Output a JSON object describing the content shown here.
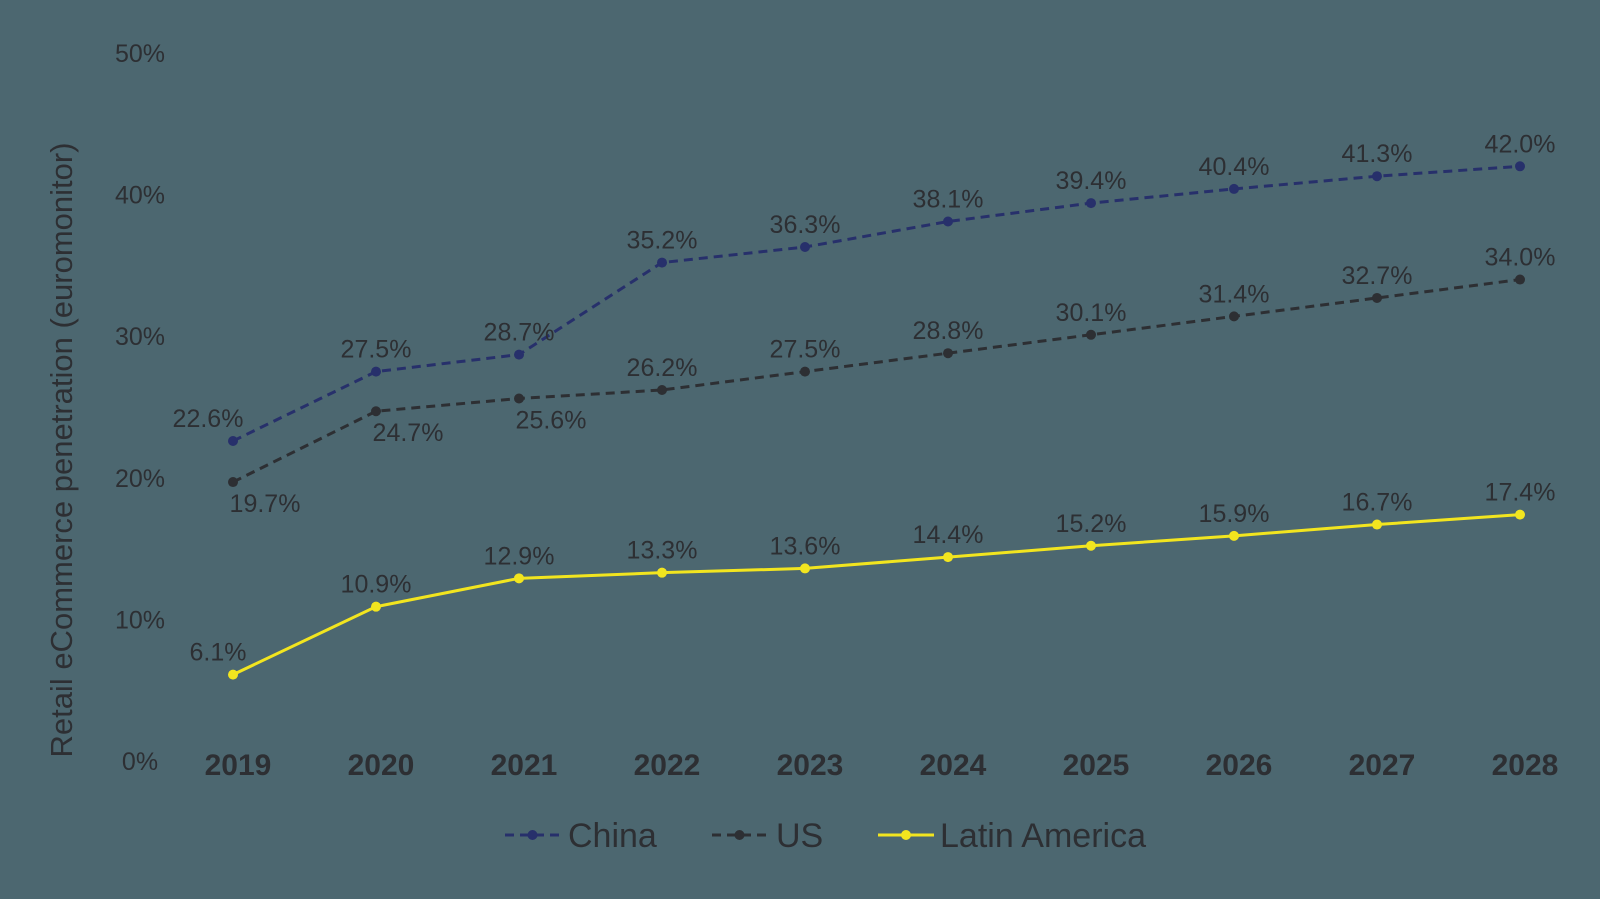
{
  "chart_data": {
    "type": "line",
    "ylabel": "Retail eCommerce penetration (euromonitor)",
    "xlabel": "",
    "ylim": [
      0,
      50
    ],
    "y_ticks": [
      "0%",
      "10%",
      "20%",
      "30%",
      "40%",
      "50%"
    ],
    "y_tick_values": [
      0,
      10,
      20,
      30,
      40,
      50
    ],
    "categories": [
      "2019",
      "2020",
      "2021",
      "2022",
      "2023",
      "2024",
      "2025",
      "2026",
      "2027",
      "2028"
    ],
    "grid": false,
    "legend_position": "bottom",
    "series": [
      {
        "name": "China",
        "color": "#27306b",
        "style": "dashed",
        "marker": true,
        "values": [
          22.6,
          27.5,
          28.7,
          35.2,
          36.3,
          38.1,
          39.4,
          40.4,
          41.3,
          42.0
        ],
        "labels": [
          "22.6%",
          "27.5%",
          "28.7%",
          "35.2%",
          "36.3%",
          "38.1%",
          "39.4%",
          "40.4%",
          "41.3%",
          "42.0%"
        ]
      },
      {
        "name": "US",
        "color": "#2d2f33",
        "style": "dashed",
        "marker": true,
        "values": [
          19.7,
          24.7,
          25.6,
          26.2,
          27.5,
          28.8,
          30.1,
          31.4,
          32.7,
          34.0
        ],
        "labels": [
          "19.7%",
          "24.7%",
          "25.6%",
          "26.2%",
          "27.5%",
          "28.8%",
          "30.1%",
          "31.4%",
          "32.7%",
          "34.0%"
        ]
      },
      {
        "name": "Latin America",
        "color": "#f2e51f",
        "style": "solid",
        "marker": true,
        "values": [
          6.1,
          10.9,
          12.9,
          13.3,
          13.6,
          14.4,
          15.2,
          15.9,
          16.7,
          17.4
        ],
        "labels": [
          "6.1%",
          "10.9%",
          "12.9%",
          "13.3%",
          "13.6%",
          "14.4%",
          "15.2%",
          "15.9%",
          "16.7%",
          "17.4%"
        ]
      }
    ]
  }
}
